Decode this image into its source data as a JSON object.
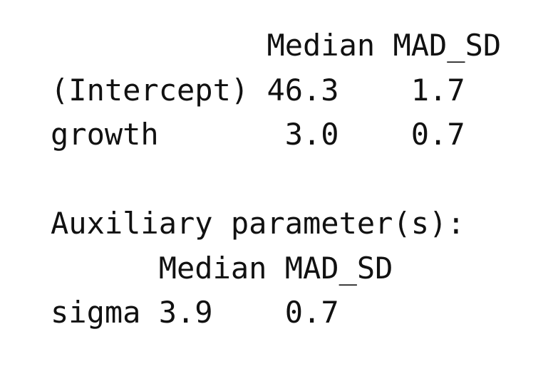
{
  "coef_table": {
    "headers": [
      "Median",
      "MAD_SD"
    ],
    "rows": [
      {
        "term": "(Intercept)",
        "median": "46.3",
        "mad_sd": "1.7"
      },
      {
        "term": "growth",
        "median": "3.0",
        "mad_sd": "0.7"
      }
    ]
  },
  "auxiliary": {
    "title": "Auxiliary parameter(s):",
    "headers": [
      "Median",
      "MAD_SD"
    ],
    "rows": [
      {
        "term": "sigma",
        "median": "3.9",
        "mad_sd": "0.7"
      }
    ]
  }
}
